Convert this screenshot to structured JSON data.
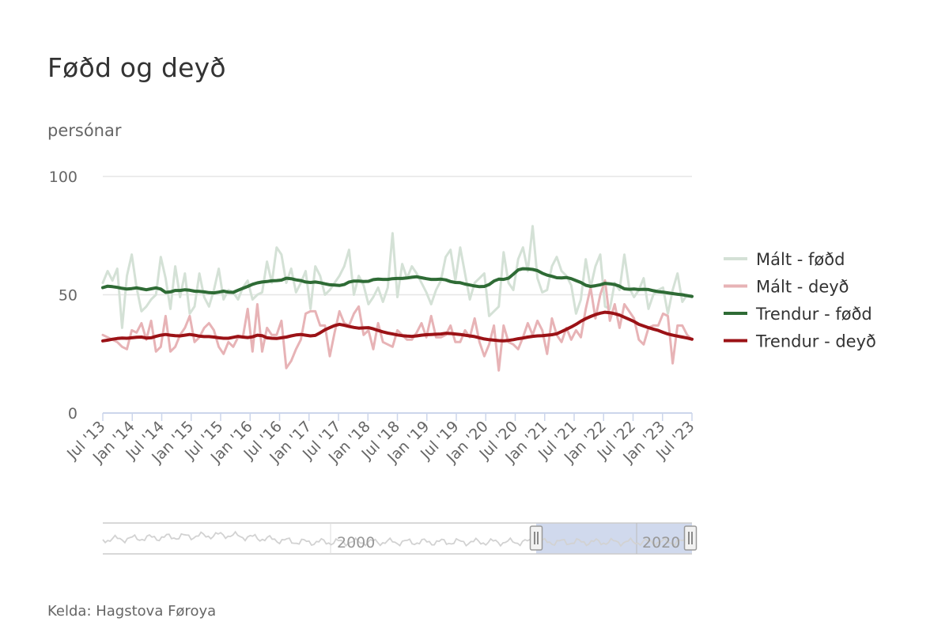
{
  "title": "Føðd og deyð",
  "unit_label": "persónar",
  "source": "Kelda: Hagstova Føroya",
  "colors": {
    "measured_born": "#d4e1d6",
    "measured_died": "#e7b3b6",
    "trend_born": "#2e6b35",
    "trend_died": "#9b1216",
    "grid": "#e6e6e6",
    "axis": "#ccd6eb",
    "navigator_fill": "#c8d2ea"
  },
  "navigator": {
    "labels": [
      "2000",
      "2020"
    ]
  },
  "chart_data": {
    "type": "line",
    "title": "Føðd og deyð",
    "ylabel": "persónar",
    "xlabel": "",
    "ylim": [
      0,
      100
    ],
    "y_ticks": [
      0,
      50,
      100
    ],
    "x_range": [
      "2013-07",
      "2023-07"
    ],
    "x_ticks": [
      "Jul '13",
      "Jan '14",
      "Jul '14",
      "Jan '15",
      "Jul '15",
      "Jan '16",
      "Jul '16",
      "Jan '17",
      "Jul '17",
      "Jan '18",
      "Jul '18",
      "Jan '19",
      "Jul '19",
      "Jan '20",
      "Jul '20",
      "Jan '21",
      "Jul '21",
      "Jan '22",
      "Jul '22",
      "Jan '23",
      "Jul '23"
    ],
    "grid": true,
    "legend_position": "right",
    "series": [
      {
        "name": "Mált - føðd",
        "color": "#d4e1d6",
        "values": [
          55,
          60,
          56,
          61,
          36,
          58,
          67,
          53,
          43,
          45,
          48,
          50,
          66,
          57,
          44,
          62,
          49,
          59,
          42,
          45,
          59,
          49,
          45,
          52,
          61,
          48,
          52,
          51,
          48,
          53,
          56,
          48,
          50,
          51,
          64,
          55,
          70,
          67,
          55,
          61,
          51,
          55,
          60,
          44,
          62,
          58,
          50,
          52,
          55,
          58,
          62,
          69,
          50,
          58,
          54,
          46,
          49,
          53,
          47,
          53,
          76,
          49,
          63,
          57,
          62,
          59,
          55,
          51,
          46,
          52,
          56,
          66,
          69,
          56,
          70,
          59,
          48,
          55,
          57,
          59,
          41,
          43,
          45,
          68,
          55,
          52,
          65,
          70,
          60,
          79,
          57,
          51,
          52,
          62,
          66,
          60,
          58,
          54,
          42,
          48,
          65,
          53,
          62,
          67,
          45,
          44,
          55,
          52,
          67,
          53,
          49,
          52,
          57,
          44,
          50,
          52,
          53,
          42,
          52,
          59,
          47,
          50,
          49
        ],
        "scaling": "approx read from plot"
      },
      {
        "name": "Mált - deyð",
        "color": "#e7b3b6",
        "values": [
          33,
          32,
          31,
          30,
          28,
          27,
          35,
          34,
          38,
          31,
          39,
          26,
          28,
          41,
          26,
          28,
          33,
          36,
          41,
          30,
          32,
          36,
          38,
          35,
          28,
          25,
          30,
          28,
          32,
          32,
          44,
          26,
          46,
          26,
          36,
          33,
          33,
          39,
          19,
          22,
          27,
          31,
          42,
          43,
          43,
          37,
          37,
          24,
          34,
          43,
          38,
          37,
          42,
          45,
          33,
          35,
          27,
          38,
          30,
          29,
          28,
          35,
          33,
          31,
          31,
          34,
          38,
          32,
          41,
          32,
          32,
          33,
          37,
          30,
          30,
          35,
          32,
          40,
          30,
          24,
          29,
          37,
          18,
          37,
          30,
          29,
          27,
          32,
          38,
          33,
          39,
          35,
          25,
          40,
          33,
          30,
          36,
          31,
          35,
          32,
          44,
          53,
          40,
          50,
          56,
          39,
          46,
          36,
          46,
          43,
          40,
          31,
          29,
          36,
          37,
          37,
          42,
          41,
          21,
          37,
          37,
          33,
          31
        ]
      },
      {
        "name": "Trendur - føðd",
        "color": "#2e6b35",
        "values": [
          53,
          53.6,
          53.4,
          53.1,
          52.7,
          52.4,
          52.6,
          52.9,
          52.5,
          52.1,
          52.5,
          52.9,
          52.4,
          51,
          51.2,
          51.8,
          51.8,
          52.1,
          51.9,
          51.5,
          51.4,
          51.2,
          50.9,
          50.8,
          51.1,
          51.5,
          51.1,
          51,
          51.9,
          52.7,
          53.5,
          54.4,
          55,
          55.4,
          55.6,
          55.9,
          56,
          56.2,
          57,
          56.8,
          56.3,
          56,
          55.4,
          55.2,
          55.4,
          55.1,
          54.6,
          54.2,
          54.1,
          53.9,
          54.3,
          55.4,
          55.8,
          55.8,
          55.6,
          55.7,
          56.4,
          56.6,
          56.5,
          56.5,
          56.8,
          56.9,
          56.9,
          57.1,
          57.4,
          57.6,
          57.2,
          56.8,
          56.5,
          56.5,
          56.6,
          56.3,
          55.6,
          55.2,
          55.1,
          54.5,
          54.1,
          53.7,
          53.4,
          53.5,
          54.3,
          55.8,
          56.6,
          56.5,
          57,
          58.7,
          60.5,
          61,
          60.9,
          60.7,
          60.2,
          59.1,
          58.3,
          57.8,
          57.2,
          57.1,
          57.3,
          56.8,
          56,
          55.2,
          54,
          53.5,
          53.8,
          54.2,
          54.8,
          54.6,
          54.3,
          53.6,
          52.5,
          52.3,
          52.4,
          52.2,
          52.3,
          52.2,
          51.7,
          51.3,
          51.1,
          50.8,
          50.5,
          50.2,
          50,
          49.6,
          49.3
        ]
      },
      {
        "name": "Trendur - deyð",
        "color": "#9b1216",
        "values": [
          30.5,
          30.8,
          31.2,
          31.5,
          31.7,
          31.6,
          31.8,
          32,
          32.1,
          31.7,
          31.8,
          32.4,
          32.9,
          33.2,
          32.9,
          32.7,
          32.6,
          32.9,
          33.2,
          32.9,
          32.5,
          32.3,
          32.3,
          32.1,
          31.8,
          31.6,
          31.6,
          32,
          32.4,
          32.1,
          31.9,
          32.2,
          32.9,
          32.7,
          31.8,
          31.6,
          31.5,
          31.8,
          32.1,
          32.6,
          33,
          33.2,
          32.9,
          32.6,
          32.8,
          33.9,
          35.2,
          36.1,
          37,
          37.5,
          37.1,
          36.6,
          36.2,
          35.9,
          36,
          36.1,
          35.6,
          34.9,
          34.3,
          33.8,
          33.4,
          33,
          32.7,
          32.5,
          32.4,
          32.6,
          32.9,
          33.1,
          33.2,
          33.3,
          33.4,
          33.7,
          33.6,
          33.4,
          33.2,
          32.9,
          32.6,
          32.3,
          31.8,
          31.3,
          31,
          30.8,
          30.6,
          30.5,
          30.7,
          31,
          31.4,
          31.7,
          32.1,
          32.4,
          32.6,
          32.7,
          32.9,
          33.1,
          33.5,
          34.4,
          35.4,
          36.4,
          37.5,
          38.8,
          39.9,
          40.8,
          41.6,
          42.2,
          42.6,
          42.4,
          42,
          41.4,
          40.5,
          39.6,
          38.7,
          37.5,
          36.8,
          36.1,
          35.5,
          34.9,
          34.1,
          33.4,
          32.9,
          32.5,
          32.1,
          31.7,
          31.2
        ]
      }
    ]
  }
}
